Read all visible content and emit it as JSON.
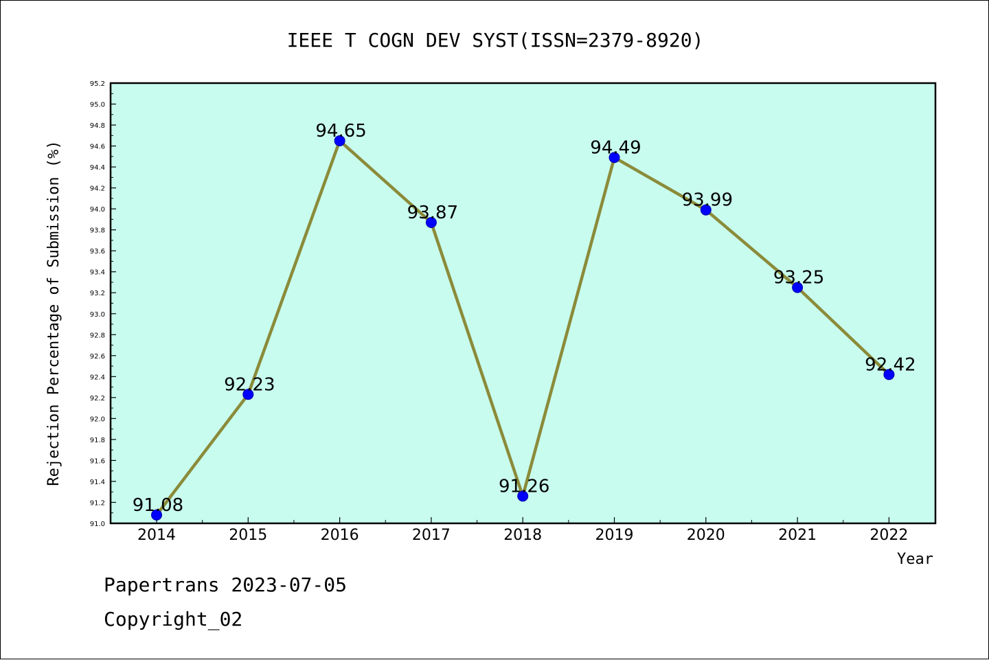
{
  "chart_data": {
    "type": "line",
    "title": "IEEE T COGN DEV SYST(ISSN=2379-8920)",
    "xlabel": "Year",
    "ylabel": "Rejection Percentage of Submission (%)",
    "categories": [
      "2014",
      "2015",
      "2016",
      "2017",
      "2018",
      "2019",
      "2020",
      "2021",
      "2022"
    ],
    "values": [
      91.08,
      92.23,
      94.65,
      93.87,
      91.26,
      94.49,
      93.99,
      93.25,
      92.42
    ],
    "data_labels": [
      "91.08",
      "92.23",
      "94.65",
      "93.87",
      "91.26",
      "94.49",
      "93.99",
      "93.25",
      "92.42"
    ],
    "ylim": [
      91.0,
      95.2
    ],
    "yticks": [
      "91.0",
      "91.2",
      "91.4",
      "91.6",
      "91.8",
      "92.0",
      "92.2",
      "92.4",
      "92.6",
      "92.8",
      "93.0",
      "93.2",
      "93.4",
      "93.6",
      "93.8",
      "94.0",
      "94.2",
      "94.4",
      "94.6",
      "94.8",
      "95.0",
      "95.2"
    ],
    "grid": false,
    "colors": {
      "plot_background": "#c8fcee",
      "line": "#8b8b3a",
      "marker": "#0000ff"
    }
  },
  "footer": {
    "line1": "Papertrans 2023-07-05",
    "line2": "Copyright_02"
  }
}
